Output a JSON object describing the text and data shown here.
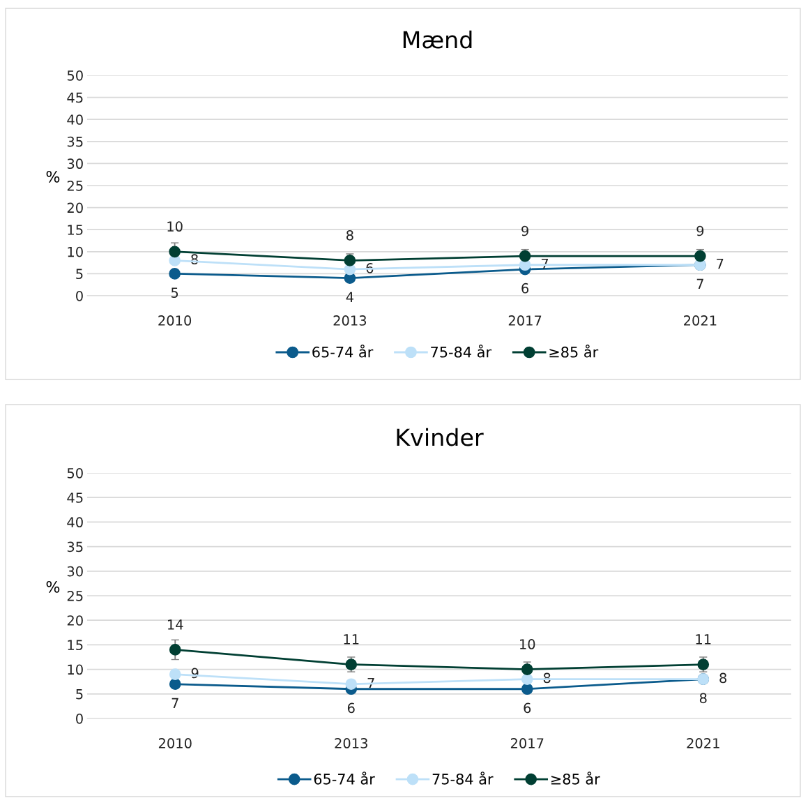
{
  "chart_data": [
    {
      "type": "line",
      "title": "Mænd",
      "ylabel": "%",
      "categories": [
        "2010",
        "2013",
        "2017",
        "2021"
      ],
      "ylim": [
        0,
        50
      ],
      "yticks": [
        0,
        5,
        10,
        15,
        20,
        25,
        30,
        35,
        40,
        45,
        50
      ],
      "grid": "y",
      "legend": "bottom",
      "marker": "circle",
      "line_style": "solid",
      "data_labels": true,
      "series": [
        {
          "name": "65-74 år",
          "color": "#0b5b8c",
          "values": [
            5,
            4,
            6,
            7
          ]
        },
        {
          "name": "75-84 år",
          "color": "#bde0f8",
          "values": [
            8,
            6,
            7,
            7
          ]
        },
        {
          "name": "≥85 år",
          "color": "#013f33",
          "values": [
            10,
            8,
            9,
            9
          ],
          "errors": [
            2,
            1.5,
            1.5,
            1.5
          ]
        }
      ]
    },
    {
      "type": "line",
      "title": "Kvinder",
      "ylabel": "%",
      "categories": [
        "2010",
        "2013",
        "2017",
        "2021"
      ],
      "ylim": [
        0,
        50
      ],
      "yticks": [
        0,
        5,
        10,
        15,
        20,
        25,
        30,
        35,
        40,
        45,
        50
      ],
      "grid": "y",
      "legend": "bottom",
      "marker": "circle",
      "line_style": "solid",
      "data_labels": true,
      "series": [
        {
          "name": "65-74 år",
          "color": "#0b5b8c",
          "values": [
            7,
            6,
            6,
            8
          ]
        },
        {
          "name": "75-84 år",
          "color": "#bde0f8",
          "values": [
            9,
            7,
            8,
            8
          ]
        },
        {
          "name": "≥85 år",
          "color": "#013f33",
          "values": [
            14,
            11,
            10,
            11
          ],
          "errors": [
            2,
            1.5,
            1.5,
            1.5
          ]
        }
      ]
    }
  ]
}
